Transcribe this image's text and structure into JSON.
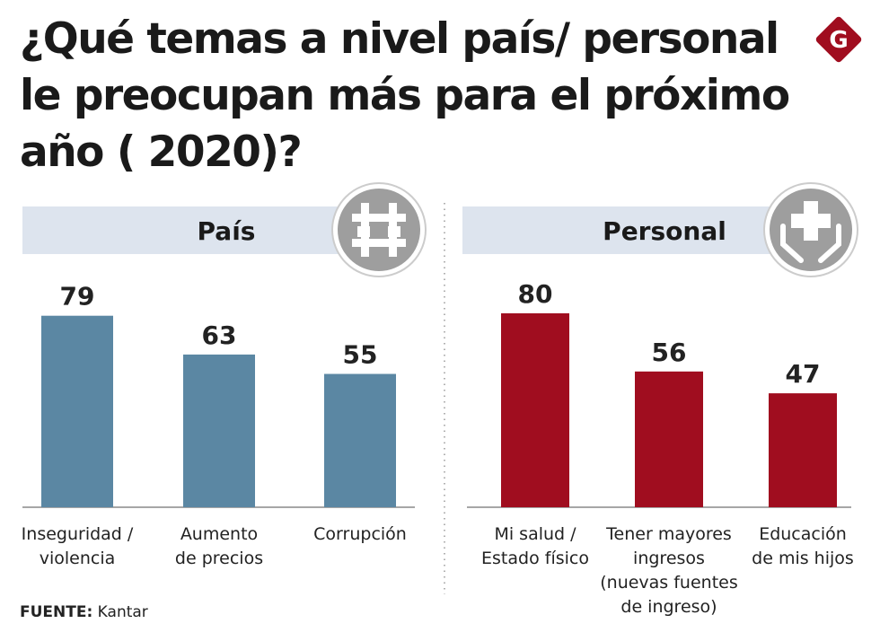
{
  "title": "¿Qué temas a nivel país/ personal le preocupan más para el próximo año ( 2020)?",
  "logo": {
    "letter": "G",
    "color": "#a00d1f"
  },
  "source": {
    "label": "FUENTE:",
    "value": "Kantar"
  },
  "chart_data": [
    {
      "type": "bar",
      "title": "País",
      "icon": "prison-bars-icon",
      "color": "#5b87a3",
      "categories": [
        [
          "Inseguridad /",
          "violencia"
        ],
        [
          "Aumento",
          "de precios"
        ],
        [
          "Corrupción"
        ]
      ],
      "values": [
        79,
        63,
        55
      ]
    },
    {
      "type": "bar",
      "title": "Personal",
      "icon": "health-hands-icon",
      "color": "#a00d1f",
      "categories": [
        [
          "Mi salud /",
          "Estado físico"
        ],
        [
          "Tener mayores",
          "ingresos",
          "(nuevas fuentes",
          "de ingreso)"
        ],
        [
          "Educación",
          "de mis hijos"
        ]
      ],
      "values": [
        80,
        56,
        47
      ]
    }
  ]
}
